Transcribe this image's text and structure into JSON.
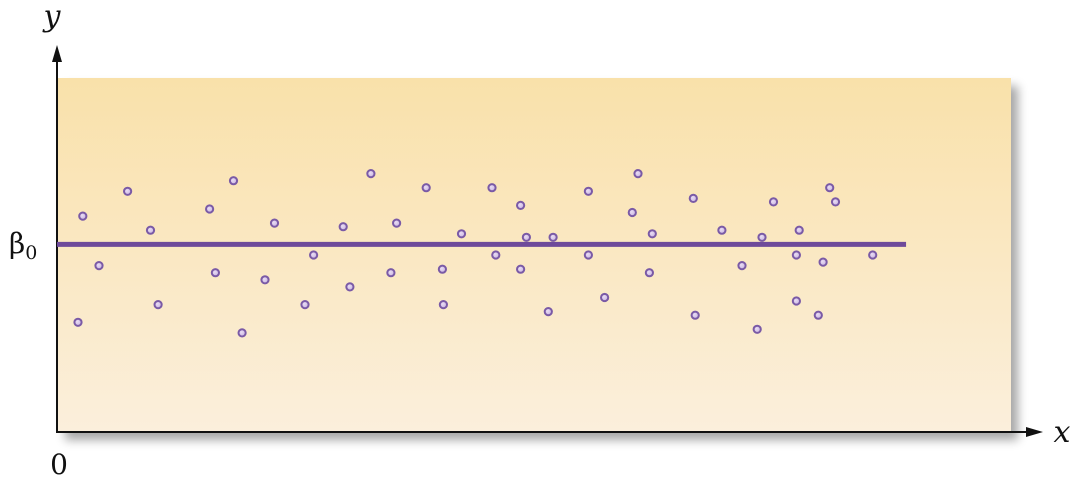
{
  "chart_data": {
    "type": "scatter",
    "title": "",
    "xlabel": "x",
    "ylabel": "y",
    "origin_label": "0",
    "intercept_label": "β",
    "intercept_subscript": "0",
    "xlim": [
      0,
      100
    ],
    "ylim": [
      0,
      100
    ],
    "grid": false,
    "colors": {
      "points": "#7a5aa6",
      "line": "#6e4a9a",
      "panel_top": "#f9e1aa",
      "panel_bottom": "#fbefdc",
      "axis": "#111111"
    },
    "horizontal_line": {
      "y": 53,
      "x_start": 0,
      "x_end": 89
    },
    "points": [
      {
        "x": 2.2,
        "y": 31
      },
      {
        "x": 2.7,
        "y": 61
      },
      {
        "x": 4.4,
        "y": 47
      },
      {
        "x": 7.4,
        "y": 68
      },
      {
        "x": 9.8,
        "y": 57
      },
      {
        "x": 10.6,
        "y": 36
      },
      {
        "x": 16.0,
        "y": 63
      },
      {
        "x": 16.6,
        "y": 45
      },
      {
        "x": 18.5,
        "y": 71
      },
      {
        "x": 19.4,
        "y": 28
      },
      {
        "x": 21.8,
        "y": 43
      },
      {
        "x": 22.8,
        "y": 59
      },
      {
        "x": 26.0,
        "y": 36
      },
      {
        "x": 26.9,
        "y": 50
      },
      {
        "x": 30.0,
        "y": 58
      },
      {
        "x": 30.7,
        "y": 41
      },
      {
        "x": 32.9,
        "y": 73
      },
      {
        "x": 35.0,
        "y": 45
      },
      {
        "x": 35.6,
        "y": 59
      },
      {
        "x": 38.7,
        "y": 69
      },
      {
        "x": 40.4,
        "y": 46
      },
      {
        "x": 40.5,
        "y": 36
      },
      {
        "x": 42.4,
        "y": 56
      },
      {
        "x": 45.6,
        "y": 69
      },
      {
        "x": 46.0,
        "y": 50
      },
      {
        "x": 48.6,
        "y": 64
      },
      {
        "x": 48.6,
        "y": 46
      },
      {
        "x": 49.2,
        "y": 55
      },
      {
        "x": 51.5,
        "y": 34
      },
      {
        "x": 52.0,
        "y": 55
      },
      {
        "x": 55.7,
        "y": 68
      },
      {
        "x": 55.7,
        "y": 50
      },
      {
        "x": 57.4,
        "y": 38
      },
      {
        "x": 60.3,
        "y": 62
      },
      {
        "x": 60.9,
        "y": 73
      },
      {
        "x": 62.1,
        "y": 45
      },
      {
        "x": 62.4,
        "y": 56
      },
      {
        "x": 66.7,
        "y": 66
      },
      {
        "x": 66.9,
        "y": 33
      },
      {
        "x": 69.7,
        "y": 57
      },
      {
        "x": 71.8,
        "y": 47
      },
      {
        "x": 73.4,
        "y": 29
      },
      {
        "x": 73.9,
        "y": 55
      },
      {
        "x": 75.1,
        "y": 65
      },
      {
        "x": 77.5,
        "y": 50
      },
      {
        "x": 77.5,
        "y": 37
      },
      {
        "x": 77.8,
        "y": 57
      },
      {
        "x": 79.8,
        "y": 33
      },
      {
        "x": 80.3,
        "y": 48
      },
      {
        "x": 81.0,
        "y": 69
      },
      {
        "x": 81.6,
        "y": 65
      },
      {
        "x": 85.5,
        "y": 50
      }
    ]
  }
}
